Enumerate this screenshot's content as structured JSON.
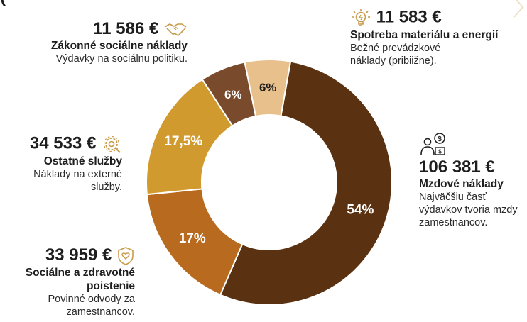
{
  "top_fragment": "(",
  "chart_data": {
    "type": "pie",
    "style": "donut",
    "categories": [
      "Mzdové náklady",
      "Sociálne a zdravotné poistenie",
      "Ostatné služby",
      "Zákonné sociálne náklady",
      "Spotreba materiálu a energií"
    ],
    "values": [
      54,
      17,
      17.5,
      6,
      6
    ],
    "value_labels": [
      "54%",
      "17%",
      "17,5%",
      "6%",
      "6%"
    ],
    "colors": [
      "#5b3211",
      "#b86b1e",
      "#d19a2e",
      "#7a4a2c",
      "#e8c08c"
    ],
    "label_colors": [
      "#ffffff",
      "#ffffff",
      "#ffffff",
      "#ffffff",
      "#1a1a1a"
    ],
    "start_angle_deg": 10
  },
  "items": {
    "mzdove": {
      "amount": "106 381 €",
      "title": "Mzdové náklady",
      "desc": "Najväčšiu časť výdavkov tvoria mzdy zamestnancov.",
      "icon": "person-money-icon"
    },
    "poistenie": {
      "amount": "33 959 €",
      "title": "Sociálne a zdravotné poistenie",
      "desc": "Povinné odvody za zamestnancov.",
      "icon": "shield-heart-icon"
    },
    "sluzby": {
      "amount": "34 533 €",
      "title": "Ostatné služby",
      "desc": "Náklady na externé služby.",
      "icon": "gear-wrench-icon"
    },
    "socialne": {
      "amount": "11 586 €",
      "title": "Zákonné sociálne náklady",
      "desc": "Výdavky na sociálnu politiku.",
      "icon": "handshake-icon"
    },
    "spotreba": {
      "amount": "11 583 €",
      "title": "Spotreba materiálu a energií",
      "desc": "Bežné prevádzkové náklady (pribiižne).",
      "icon": "lightbulb-icon"
    }
  },
  "accent_color": "#c89a4a"
}
